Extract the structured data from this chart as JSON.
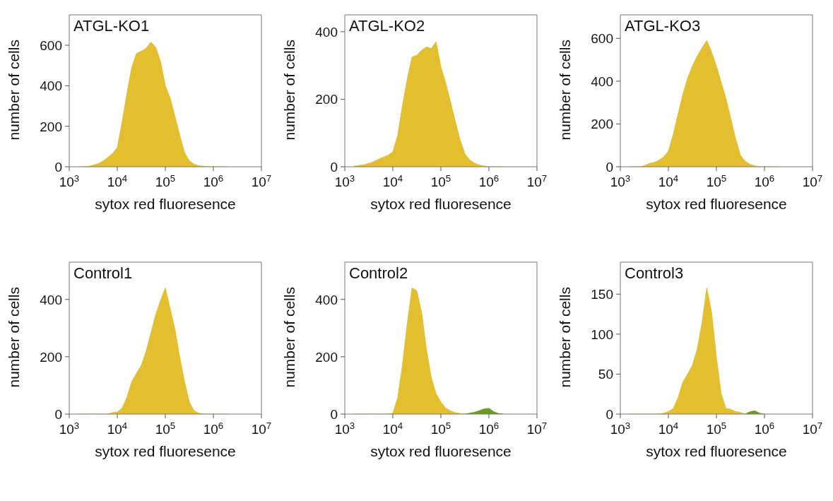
{
  "chart_data": [
    {
      "type": "area",
      "title": "ATGL-KO1",
      "xlabel": "sytox red fluoresence",
      "ylabel": "number of cells",
      "log": "x",
      "xlim": [
        1000,
        10000000
      ],
      "xticks": [
        {
          "value": 1000,
          "label": "10$^{3}$"
        },
        {
          "value": 10000,
          "label": "10$^{4}$"
        },
        {
          "value": 100000,
          "label": "10$^{5}$"
        },
        {
          "value": 1000000,
          "label": "10$^{6}$"
        },
        {
          "value": 10000000,
          "label": "10$^{7}$"
        }
      ],
      "ylim": [
        0,
        750
      ],
      "yticks": [
        0,
        200,
        400,
        600
      ],
      "x": [
        1580,
        2000,
        2510,
        3160,
        3980,
        5010,
        6310,
        7940,
        10000,
        12600,
        15800,
        20000,
        25100,
        31600,
        39800,
        50100,
        63100,
        79400,
        100000,
        126000,
        158000,
        200000,
        251000,
        316000,
        398000,
        501000,
        631000,
        794000,
        1000000,
        1260000,
        1580000,
        2000000
      ],
      "series": [
        {
          "color": "#e3bf2f",
          "values": [
            0,
            0,
            2,
            8,
            15,
            28,
            45,
            65,
            95,
            220,
            360,
            490,
            560,
            570,
            585,
            615,
            590,
            520,
            400,
            340,
            250,
            155,
            70,
            30,
            12,
            5,
            2,
            0,
            0,
            0,
            0,
            0
          ]
        }
      ]
    },
    {
      "type": "area",
      "title": "ATGL-KO2",
      "xlabel": "sytox red fluoresence",
      "ylabel": "number of cells",
      "log": "x",
      "xlim": [
        1000,
        10000000
      ],
      "xticks": [
        {
          "value": 1000,
          "label": "10$^{3}$"
        },
        {
          "value": 10000,
          "label": "10$^{4}$"
        },
        {
          "value": 100000,
          "label": "10$^{5}$"
        },
        {
          "value": 1000000,
          "label": "10$^{6}$"
        },
        {
          "value": 10000000,
          "label": "10$^{7}$"
        }
      ],
      "ylim": [
        0,
        450
      ],
      "yticks": [
        0,
        200,
        400
      ],
      "x": [
        1580,
        2000,
        2510,
        3160,
        3980,
        5010,
        6310,
        7940,
        10000,
        12600,
        15800,
        20000,
        25100,
        31600,
        39800,
        50100,
        63100,
        79400,
        100000,
        126000,
        158000,
        200000,
        251000,
        316000,
        398000,
        501000,
        631000,
        794000,
        1000000,
        1260000,
        1580000,
        2000000
      ],
      "series": [
        {
          "color": "#e3bf2f",
          "values": [
            2,
            4,
            6,
            10,
            15,
            22,
            28,
            34,
            44,
            92,
            180,
            260,
            325,
            330,
            345,
            355,
            350,
            370,
            296,
            248,
            194,
            134,
            80,
            38,
            20,
            11,
            5,
            2,
            0,
            0,
            0,
            0
          ]
        }
      ]
    },
    {
      "type": "area",
      "title": "ATGL-KO3",
      "xlabel": "sytox red fluoresence",
      "ylabel": "number of cells",
      "log": "x",
      "xlim": [
        1000,
        10000000
      ],
      "xticks": [
        {
          "value": 1000,
          "label": "10$^{3}$"
        },
        {
          "value": 10000,
          "label": "10$^{4}$"
        },
        {
          "value": 100000,
          "label": "10$^{5}$"
        },
        {
          "value": 1000000,
          "label": "10$^{6}$"
        },
        {
          "value": 10000000,
          "label": "10$^{7}$"
        }
      ],
      "ylim": [
        0,
        710
      ],
      "yticks": [
        0,
        200,
        400,
        600
      ],
      "x": [
        1580,
        2000,
        2510,
        3160,
        3980,
        5010,
        6310,
        7940,
        10000,
        12600,
        15800,
        20000,
        25100,
        31600,
        39800,
        50100,
        63100,
        79400,
        100000,
        126000,
        158000,
        200000,
        251000,
        316000,
        398000,
        501000,
        631000,
        794000,
        1000000,
        1260000,
        1580000,
        2000000
      ],
      "series": [
        {
          "color": "#e3bf2f",
          "values": [
            0,
            0,
            0,
            5,
            15,
            20,
            30,
            45,
            73,
            150,
            243,
            338,
            413,
            470,
            517,
            555,
            590,
            536,
            470,
            395,
            319,
            224,
            130,
            54,
            26,
            11,
            4,
            0,
            0,
            0,
            0,
            0
          ]
        }
      ]
    },
    {
      "type": "area",
      "title": "Control1",
      "xlabel": "sytox red fluoresence",
      "ylabel": "number of cells",
      "log": "x",
      "xlim": [
        1000,
        10000000
      ],
      "xticks": [
        {
          "value": 1000,
          "label": "10$^{3}$"
        },
        {
          "value": 10000,
          "label": "10$^{4}$"
        },
        {
          "value": 100000,
          "label": "10$^{5}$"
        },
        {
          "value": 1000000,
          "label": "10$^{6}$"
        },
        {
          "value": 10000000,
          "label": "10$^{7}$"
        }
      ],
      "ylim": [
        0,
        530
      ],
      "yticks": [
        0,
        200,
        400
      ],
      "x": [
        1580,
        2000,
        2510,
        3160,
        3980,
        5010,
        6310,
        7940,
        10000,
        12600,
        15800,
        20000,
        25100,
        31600,
        39800,
        50100,
        63100,
        79400,
        100000,
        126000,
        158000,
        200000,
        251000,
        316000,
        398000,
        501000,
        631000,
        794000,
        1000000,
        1260000,
        1580000,
        2000000
      ],
      "series": [
        {
          "color": "#e3bf2f",
          "values": [
            0,
            0,
            0,
            0,
            0,
            0,
            0,
            5,
            7,
            21,
            57,
            113,
            142,
            170,
            219,
            283,
            347,
            396,
            440,
            368,
            297,
            198,
            113,
            42,
            11,
            3,
            0,
            0,
            0,
            0,
            0,
            0
          ]
        }
      ]
    },
    {
      "type": "area",
      "title": "Control2",
      "xlabel": "sytox red fluoresence",
      "ylabel": "number of cells",
      "log": "x",
      "xlim": [
        1000,
        10000000
      ],
      "xticks": [
        {
          "value": 1000,
          "label": "10$^{3}$"
        },
        {
          "value": 10000,
          "label": "10$^{4}$"
        },
        {
          "value": 100000,
          "label": "10$^{5}$"
        },
        {
          "value": 1000000,
          "label": "10$^{6}$"
        },
        {
          "value": 10000000,
          "label": "10$^{7}$"
        }
      ],
      "ylim": [
        0,
        530
      ],
      "yticks": [
        0,
        200,
        400
      ],
      "x": [
        1580,
        2000,
        2510,
        3160,
        3980,
        5010,
        6310,
        7940,
        10000,
        12600,
        15800,
        20000,
        25100,
        31600,
        39800,
        50100,
        63100,
        79400,
        100000,
        126000,
        158000,
        200000,
        251000,
        316000,
        398000,
        501000,
        631000,
        794000,
        1000000,
        1260000,
        1580000,
        2000000
      ],
      "series": [
        {
          "color": "#e3bf2f",
          "values": [
            0,
            0,
            0,
            0,
            0,
            0,
            0,
            0,
            3,
            56,
            169,
            317,
            440,
            430,
            353,
            226,
            127,
            71,
            42,
            21,
            11,
            5,
            2,
            0,
            null,
            null,
            null,
            null,
            null,
            null,
            null,
            null
          ]
        },
        {
          "color": "#6e9a22",
          "values": [
            null,
            null,
            null,
            null,
            null,
            null,
            null,
            null,
            null,
            null,
            null,
            null,
            null,
            null,
            null,
            null,
            null,
            null,
            null,
            null,
            null,
            null,
            null,
            0,
            3,
            6,
            12,
            18,
            20,
            8,
            2,
            0
          ]
        }
      ]
    },
    {
      "type": "area",
      "title": "Control3",
      "xlabel": "sytox red fluoresence",
      "ylabel": "number of cells",
      "log": "x",
      "xlim": [
        1000,
        10000000
      ],
      "xticks": [
        {
          "value": 1000,
          "label": "10$^{3}$"
        },
        {
          "value": 10000,
          "label": "10$^{4}$"
        },
        {
          "value": 100000,
          "label": "10$^{5}$"
        },
        {
          "value": 1000000,
          "label": "10$^{6}$"
        },
        {
          "value": 10000000,
          "label": "10$^{7}$"
        }
      ],
      "ylim": [
        0,
        190
      ],
      "yticks": [
        0,
        50,
        100,
        150
      ],
      "x": [
        1580,
        2000,
        2510,
        3160,
        3980,
        5010,
        6310,
        7940,
        10000,
        12600,
        15800,
        20000,
        25100,
        31600,
        39800,
        50100,
        63100,
        79400,
        100000,
        126000,
        158000,
        200000,
        251000,
        316000,
        398000,
        501000,
        631000,
        794000,
        1000000
      ],
      "series": [
        {
          "color": "#e3bf2f",
          "values": [
            0,
            0,
            0,
            0,
            0,
            0,
            0,
            1,
            3,
            7,
            20,
            40,
            50,
            61,
            81,
            114,
            158,
            127,
            71,
            25,
            7,
            6,
            3,
            2,
            0,
            null,
            null,
            null,
            null
          ]
        },
        {
          "color": "#6e9a22",
          "values": [
            null,
            null,
            null,
            null,
            null,
            null,
            null,
            null,
            null,
            null,
            null,
            null,
            null,
            null,
            null,
            null,
            null,
            null,
            null,
            null,
            null,
            null,
            null,
            null,
            0,
            3,
            4,
            1,
            0
          ]
        }
      ]
    }
  ]
}
